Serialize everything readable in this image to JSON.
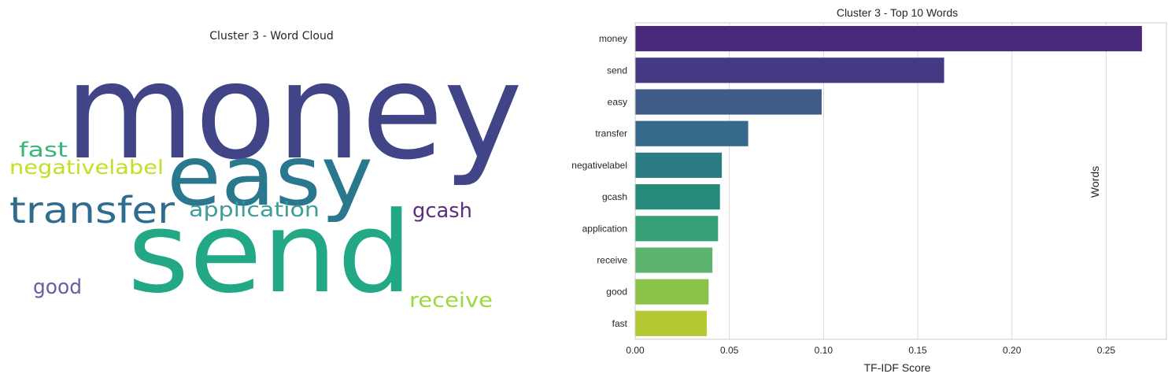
{
  "wordcloud": {
    "title": "Cluster 3 - Word Cloud",
    "words": [
      {
        "text": "money",
        "color": "#414487"
      },
      {
        "text": "send",
        "color": "#22a884"
      },
      {
        "text": "easy",
        "color": "#2a788e"
      },
      {
        "text": "transfer",
        "color": "#2f6c8e"
      },
      {
        "text": "application",
        "color": "#3e9e9a"
      },
      {
        "text": "fast",
        "color": "#35b779"
      },
      {
        "text": "negativelabel",
        "color": "#c2df23"
      },
      {
        "text": "gcash",
        "color": "#5b2f7b"
      },
      {
        "text": "good",
        "color": "#6a5e9e"
      },
      {
        "text": "receive",
        "color": "#9bd93c"
      }
    ]
  },
  "chart_data": {
    "type": "bar",
    "orientation": "horizontal",
    "title": "Cluster 3 - Top 10 Words",
    "xlabel": "TF-IDF Score",
    "ylabel": "Words",
    "categories": [
      "money",
      "send",
      "easy",
      "transfer",
      "negativelabel",
      "gcash",
      "application",
      "receive",
      "good",
      "fast"
    ],
    "values": [
      0.269,
      0.164,
      0.099,
      0.06,
      0.046,
      0.045,
      0.044,
      0.041,
      0.039,
      0.038
    ],
    "colors": [
      "#482878",
      "#443983",
      "#3f5b88",
      "#366a8a",
      "#2c7c84",
      "#268a7a",
      "#35a076",
      "#5db46e",
      "#8bc34a",
      "#b3c833"
    ],
    "xlim": [
      0,
      0.282
    ],
    "xticks": [
      "0.00",
      "0.05",
      "0.10",
      "0.15",
      "0.20",
      "0.25"
    ],
    "grid": true
  }
}
